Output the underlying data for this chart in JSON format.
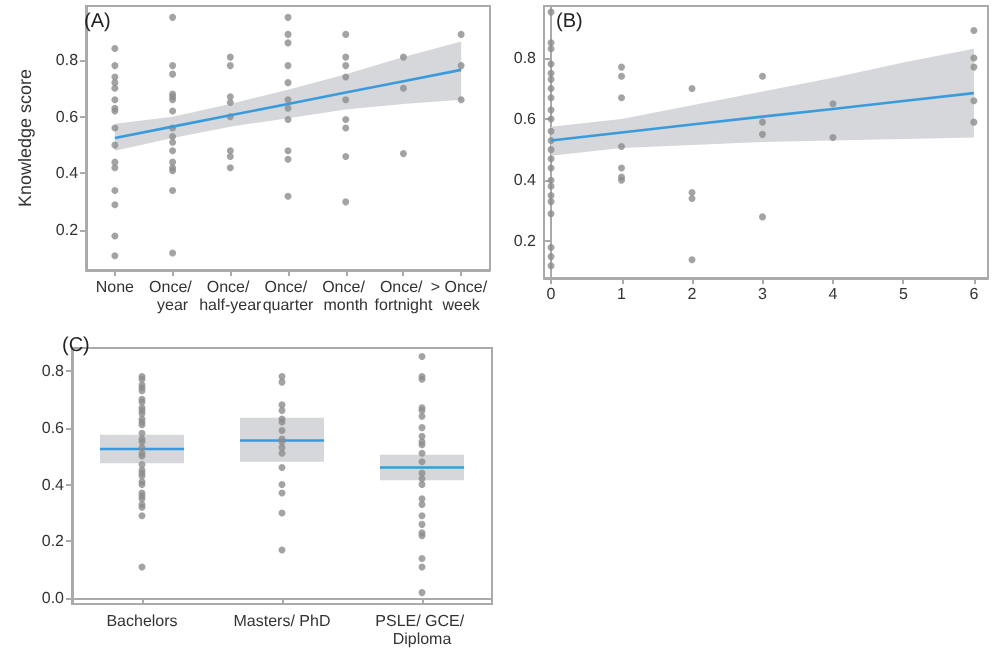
{
  "chart_data": [
    {
      "type": "scatter",
      "title": "(A)",
      "ylabel": "Knowledge score",
      "categories": [
        "None",
        "Once/ year",
        "Once/ half-year",
        "Once/ quarter",
        "Once/ month",
        "Once/ fortnight",
        "> Once/ week"
      ],
      "ylim": [
        0.06,
        0.99
      ],
      "yticks": [
        0.2,
        0.4,
        0.6,
        0.8
      ],
      "marker": "circle",
      "series": [
        {
          "color": "#8c8c8c",
          "x": [
            "None",
            "None",
            "None",
            "None",
            "None",
            "None",
            "None",
            "None",
            "None",
            "None",
            "None",
            "None",
            "None",
            "None",
            "None",
            "None",
            "Once/ year",
            "Once/ year",
            "Once/ year",
            "Once/ year",
            "Once/ year",
            "Once/ year",
            "Once/ year",
            "Once/ year",
            "Once/ year",
            "Once/ year",
            "Once/ year",
            "Once/ year",
            "Once/ year",
            "Once/ year",
            "Once/ year",
            "Once/ year",
            "Once/ half-year",
            "Once/ half-year",
            "Once/ half-year",
            "Once/ half-year",
            "Once/ half-year",
            "Once/ half-year",
            "Once/ half-year",
            "Once/ half-year",
            "Once/ quarter",
            "Once/ quarter",
            "Once/ quarter",
            "Once/ quarter",
            "Once/ quarter",
            "Once/ quarter",
            "Once/ quarter",
            "Once/ quarter",
            "Once/ quarter",
            "Once/ quarter",
            "Once/ quarter",
            "Once/ month",
            "Once/ month",
            "Once/ month",
            "Once/ month",
            "Once/ month",
            "Once/ month",
            "Once/ month",
            "Once/ month",
            "Once/ month",
            "Once/ fortnight",
            "Once/ fortnight",
            "Once/ fortnight",
            "> Once/ week",
            "> Once/ week",
            "> Once/ week"
          ],
          "values": [
            0.84,
            0.78,
            0.74,
            0.72,
            0.7,
            0.66,
            0.63,
            0.62,
            0.56,
            0.5,
            0.44,
            0.42,
            0.34,
            0.29,
            0.18,
            0.11,
            0.95,
            0.78,
            0.75,
            0.68,
            0.67,
            0.66,
            0.62,
            0.56,
            0.53,
            0.51,
            0.48,
            0.44,
            0.42,
            0.41,
            0.34,
            0.12,
            0.81,
            0.78,
            0.67,
            0.65,
            0.6,
            0.48,
            0.46,
            0.42,
            0.95,
            0.89,
            0.86,
            0.78,
            0.72,
            0.66,
            0.63,
            0.59,
            0.48,
            0.45,
            0.32,
            0.89,
            0.81,
            0.78,
            0.74,
            0.66,
            0.59,
            0.56,
            0.46,
            0.3,
            0.81,
            0.7,
            0.47,
            0.89,
            0.78,
            0.66
          ]
        },
        {
          "type": "line",
          "marker": "none",
          "color": "#3a9bdc",
          "values": [
            0.525,
            0.565,
            0.605,
            0.645,
            0.685,
            0.725,
            0.765
          ],
          "lower": [
            0.48,
            0.525,
            0.565,
            0.595,
            0.625,
            0.645,
            0.66
          ],
          "upper": [
            0.575,
            0.6,
            0.645,
            0.695,
            0.75,
            0.81,
            0.865
          ]
        }
      ]
    },
    {
      "type": "scatter",
      "title": "(B)",
      "xlim": [
        -0.1,
        6.2
      ],
      "xticks": [
        0,
        1,
        2,
        3,
        4,
        5,
        6
      ],
      "ylim": [
        0.08,
        0.97
      ],
      "yticks": [
        0.2,
        0.4,
        0.6,
        0.8
      ],
      "marker": "circle",
      "series": [
        {
          "color": "#8c8c8c",
          "x": [
            0,
            0,
            0,
            0,
            0,
            0,
            0,
            0,
            0,
            0,
            0,
            0,
            0,
            0,
            0,
            0,
            0,
            0,
            0,
            0,
            0,
            0,
            0,
            1,
            1,
            1,
            1,
            1,
            1,
            1,
            2,
            2,
            2,
            2,
            3,
            3,
            3,
            3,
            4,
            4,
            6,
            6,
            6,
            6,
            6
          ],
          "values": [
            0.95,
            0.85,
            0.83,
            0.78,
            0.75,
            0.73,
            0.7,
            0.67,
            0.63,
            0.6,
            0.56,
            0.53,
            0.5,
            0.47,
            0.44,
            0.4,
            0.38,
            0.35,
            0.33,
            0.29,
            0.18,
            0.15,
            0.12,
            0.77,
            0.74,
            0.67,
            0.51,
            0.44,
            0.41,
            0.4,
            0.7,
            0.36,
            0.34,
            0.14,
            0.74,
            0.59,
            0.55,
            0.28,
            0.65,
            0.54,
            0.89,
            0.8,
            0.77,
            0.66,
            0.59
          ]
        },
        {
          "type": "line",
          "marker": "none",
          "color": "#3a9bdc",
          "x": [
            0,
            1,
            2,
            3,
            4,
            5,
            6
          ],
          "values": [
            0.53,
            0.556,
            0.582,
            0.608,
            0.633,
            0.659,
            0.685
          ],
          "lower": [
            0.48,
            0.505,
            0.515,
            0.525,
            0.53,
            0.535,
            0.54
          ],
          "upper": [
            0.575,
            0.6,
            0.645,
            0.69,
            0.735,
            0.785,
            0.83
          ]
        }
      ]
    },
    {
      "type": "box",
      "title": "(C)",
      "categories": [
        "Bachelors",
        "Masters/ PhD",
        "PSLE/ GCE/ Diploma"
      ],
      "ylim": [
        -0.02,
        0.88
      ],
      "yticks": [
        {
          "value": 0,
          "label": "0.0"
        },
        0.2,
        0.4,
        0.6,
        0.8
      ],
      "marker": "circle",
      "series": [
        {
          "color": "#d6d7db",
          "boxes": [
            {
              "low": 0.475,
              "q1": 0.475,
              "median": 0.525,
              "q3": 0.575,
              "high": 0.575
            },
            {
              "low": 0.48,
              "q1": 0.48,
              "median": 0.555,
              "q3": 0.635,
              "high": 0.635
            },
            {
              "low": 0.415,
              "q1": 0.415,
              "median": 0.46,
              "q3": 0.505,
              "high": 0.505
            }
          ]
        },
        {
          "type": "scatter",
          "color": "#8c8c8c",
          "x": [
            "Bachelors",
            "Bachelors",
            "Bachelors",
            "Bachelors",
            "Bachelors",
            "Bachelors",
            "Bachelors",
            "Bachelors",
            "Bachelors",
            "Bachelors",
            "Bachelors",
            "Bachelors",
            "Bachelors",
            "Bachelors",
            "Bachelors",
            "Bachelors",
            "Bachelors",
            "Bachelors",
            "Bachelors",
            "Bachelors",
            "Bachelors",
            "Bachelors",
            "Bachelors",
            "Bachelors",
            "Bachelors",
            "Bachelors",
            "Bachelors",
            "Bachelors",
            "Bachelors",
            "Bachelors",
            "Bachelors",
            "Bachelors",
            "Masters/ PhD",
            "Masters/ PhD",
            "Masters/ PhD",
            "Masters/ PhD",
            "Masters/ PhD",
            "Masters/ PhD",
            "Masters/ PhD",
            "Masters/ PhD",
            "Masters/ PhD",
            "Masters/ PhD",
            "Masters/ PhD",
            "Masters/ PhD",
            "Masters/ PhD",
            "Masters/ PhD",
            "Masters/ PhD",
            "Masters/ PhD",
            "PSLE/ GCE/ Diploma",
            "PSLE/ GCE/ Diploma",
            "PSLE/ GCE/ Diploma",
            "PSLE/ GCE/ Diploma",
            "PSLE/ GCE/ Diploma",
            "PSLE/ GCE/ Diploma",
            "PSLE/ GCE/ Diploma",
            "PSLE/ GCE/ Diploma",
            "PSLE/ GCE/ Diploma",
            "PSLE/ GCE/ Diploma",
            "PSLE/ GCE/ Diploma",
            "PSLE/ GCE/ Diploma",
            "PSLE/ GCE/ Diploma",
            "PSLE/ GCE/ Diploma",
            "PSLE/ GCE/ Diploma",
            "PSLE/ GCE/ Diploma",
            "PSLE/ GCE/ Diploma",
            "PSLE/ GCE/ Diploma",
            "PSLE/ GCE/ Diploma",
            "PSLE/ GCE/ Diploma",
            "PSLE/ GCE/ Diploma",
            "PSLE/ GCE/ Diploma",
            "PSLE/ GCE/ Diploma",
            "PSLE/ GCE/ Diploma"
          ],
          "values": [
            0.78,
            0.77,
            0.74,
            0.73,
            0.7,
            0.67,
            0.66,
            0.65,
            0.63,
            0.61,
            0.58,
            0.56,
            0.55,
            0.53,
            0.51,
            0.5,
            0.47,
            0.44,
            0.43,
            0.41,
            0.4,
            0.37,
            0.36,
            0.33,
            0.32,
            0.29,
            0.11,
            0.75,
            0.69,
            0.62,
            0.45,
            0.35,
            0.78,
            0.76,
            0.68,
            0.66,
            0.63,
            0.62,
            0.59,
            0.56,
            0.55,
            0.53,
            0.51,
            0.46,
            0.4,
            0.37,
            0.3,
            0.17,
            0.85,
            0.78,
            0.77,
            0.67,
            0.66,
            0.64,
            0.57,
            0.55,
            0.54,
            0.51,
            0.44,
            0.42,
            0.4,
            0.35,
            0.33,
            0.29,
            0.23,
            0.22,
            0.14,
            0.11,
            0.02,
            0.6,
            0.48,
            0.26
          ]
        }
      ]
    }
  ]
}
